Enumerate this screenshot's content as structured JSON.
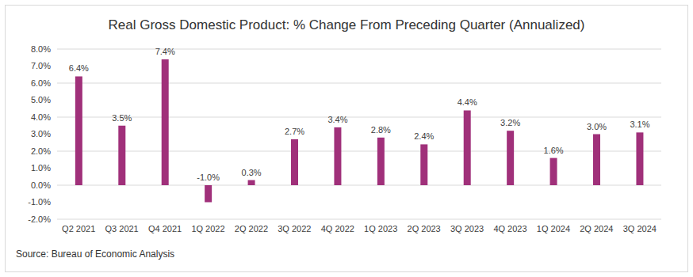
{
  "chart_data": {
    "type": "bar",
    "title": "Real Gross Domestic Product: % Change From Preceding Quarter (Annualized)",
    "source": "Source: Bureau of Economic Analysis",
    "categories": [
      "Q2 2021",
      "Q3 2021",
      "Q4 2021",
      "1Q 2022",
      "2Q 2022",
      "3Q 2022",
      "4Q 2022",
      "1Q 2023",
      "2Q 2023",
      "3Q 2023",
      "4Q 2023",
      "1Q 2024",
      "2Q 2024",
      "3Q 2024"
    ],
    "values": [
      6.4,
      3.5,
      7.4,
      -1.0,
      0.3,
      2.7,
      3.4,
      2.8,
      2.4,
      4.4,
      3.2,
      1.6,
      3.0,
      3.1
    ],
    "value_labels": [
      "6.4%",
      "3.5%",
      "7.4%",
      "-1.0%",
      "0.3%",
      "2.7%",
      "3.4%",
      "2.8%",
      "2.4%",
      "4.4%",
      "3.2%",
      "1.6%",
      "3.0%",
      "3.1%"
    ],
    "color": "#a0307a",
    "ylim": [
      -2,
      8
    ],
    "yticks": [
      {
        "value": -2,
        "label": "-2.0%"
      },
      {
        "value": -1,
        "label": "-1.0%"
      },
      {
        "value": 0,
        "label": "0.0%"
      },
      {
        "value": 1,
        "label": "1.0%"
      },
      {
        "value": 2,
        "label": "2.0%"
      },
      {
        "value": 3,
        "label": "3.0%"
      },
      {
        "value": 4,
        "label": "4.0%"
      },
      {
        "value": 5,
        "label": "5.0%"
      },
      {
        "value": 6,
        "label": "6.0%"
      },
      {
        "value": 7,
        "label": "7.0%"
      },
      {
        "value": 8,
        "label": "8.0%"
      }
    ],
    "grid": true,
    "data_labels": true
  }
}
